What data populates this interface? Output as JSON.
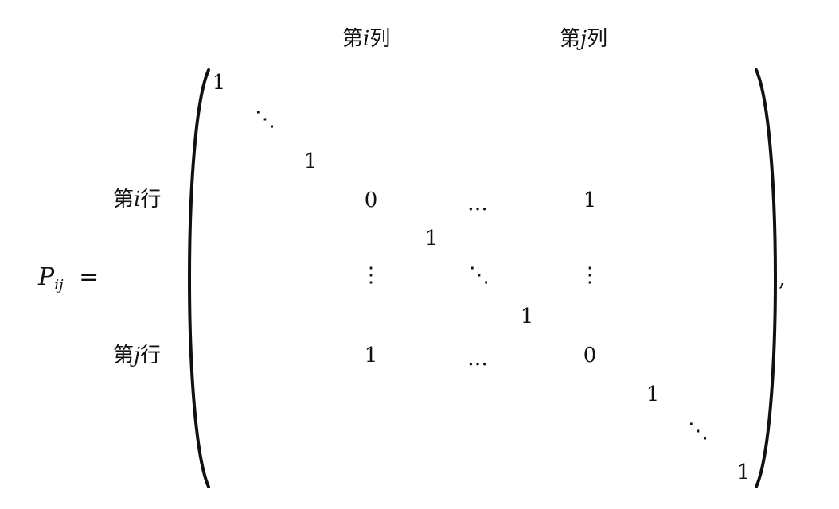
{
  "lhs": {
    "symbol": "P",
    "subscript": "ij",
    "equals": "="
  },
  "column_labels": [
    {
      "prefix": "第",
      "var": "i",
      "suffix": "列"
    },
    {
      "prefix": "第",
      "var": "j",
      "suffix": "列"
    }
  ],
  "row_labels": [
    {
      "prefix": "第",
      "var": "i",
      "suffix": "行"
    },
    {
      "prefix": "第",
      "var": "j",
      "suffix": "行"
    }
  ],
  "matrix": {
    "entries": {
      "r1_c1": "1",
      "r3_c3": "1",
      "ri_ci": "0",
      "ri_cj": "1",
      "r5_c5": "1",
      "r7_c7": "1",
      "rj_ci": "1",
      "rj_cj": "0",
      "r9_c9": "1",
      "rn_cn": "1"
    },
    "ellipses": {
      "diag_top": "⋱",
      "row_i_mid": "…",
      "col_i_mid": "⋮",
      "center_diag": "⋱",
      "col_j_mid": "⋮",
      "row_j_mid": "…",
      "diag_bottom": "⋱"
    }
  },
  "trailing": ","
}
